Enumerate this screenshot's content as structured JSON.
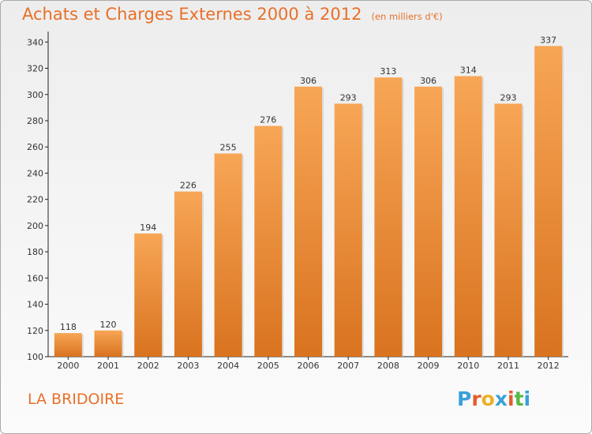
{
  "title": "Achats et Charges Externes 2000 à 2012",
  "subtitle": "(en milliers d'€)",
  "place": "LA BRIDOIRE",
  "logo": {
    "letters": [
      "P",
      "r",
      "o",
      "x",
      "i",
      "t",
      "i"
    ],
    "colors": [
      "#3aa0d8",
      "#e55c2e",
      "#e9b224",
      "#3aa0d8",
      "#e55c2e",
      "#58b848",
      "#3aa0d8"
    ]
  },
  "colors": {
    "title": "#e8702a",
    "bar_top": "#f7a656",
    "bar_bottom": "#d9731f",
    "axis": "#222222"
  },
  "chart_data": {
    "type": "bar",
    "categories": [
      "2000",
      "2001",
      "2002",
      "2003",
      "2004",
      "2005",
      "2006",
      "2007",
      "2008",
      "2009",
      "2010",
      "2011",
      "2012"
    ],
    "values": [
      118,
      120,
      194,
      226,
      255,
      276,
      306,
      293,
      313,
      306,
      314,
      293,
      337
    ],
    "ylim": [
      100,
      345
    ],
    "yticks": [
      100,
      120,
      140,
      160,
      180,
      200,
      220,
      240,
      260,
      280,
      300,
      320,
      340
    ],
    "grid": false
  }
}
